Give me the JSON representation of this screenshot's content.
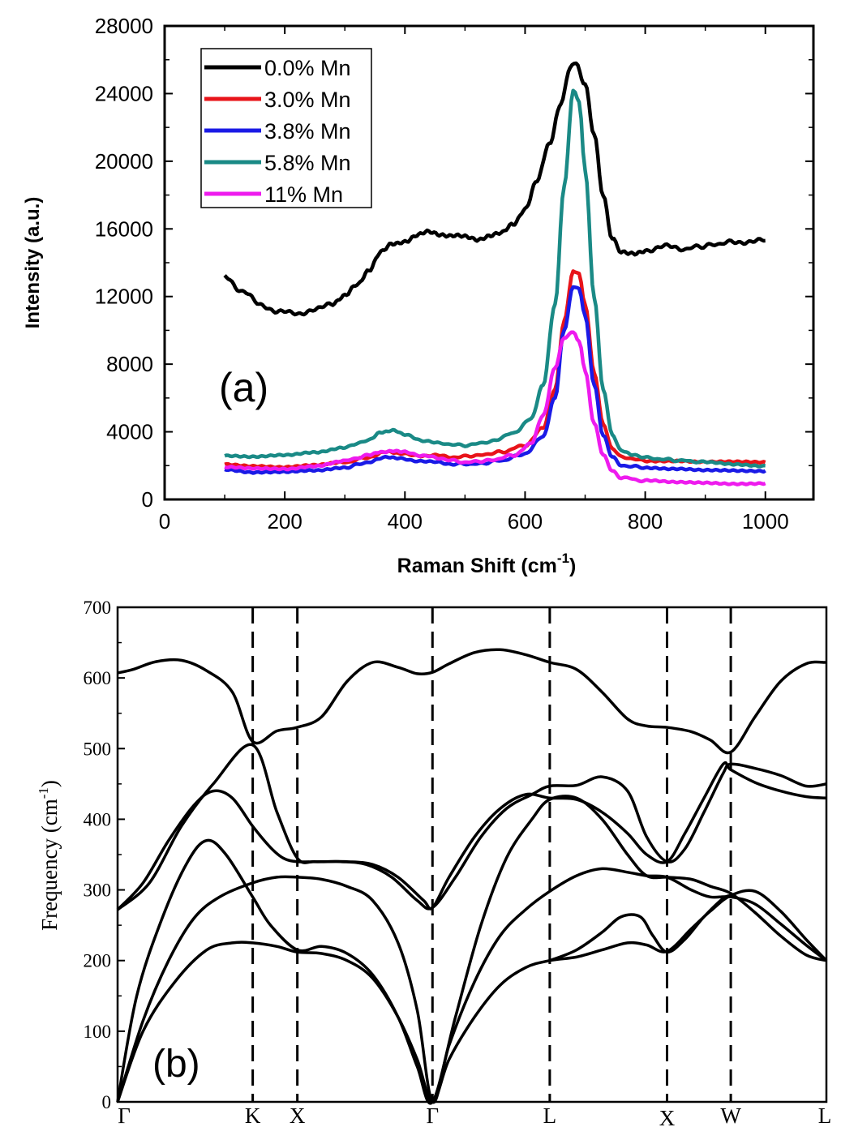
{
  "chart_data": [
    {
      "panel": "(a)",
      "type": "line",
      "xlabel": "Raman Shift (cm",
      "xlabel_sup": "-1",
      "xlabel_end": ")",
      "ylabel": "Intensity (a.u.)",
      "xlim": [
        0,
        1080
      ],
      "ylim": [
        0,
        28000
      ],
      "xticks": [
        0,
        200,
        400,
        600,
        800,
        1000
      ],
      "yticks": [
        0,
        4000,
        8000,
        12000,
        16000,
        20000,
        24000,
        28000
      ],
      "legend_position": "top-left",
      "grid": false,
      "series": [
        {
          "name": "0.0% Mn",
          "color": "#000000",
          "x": [
            100,
            130,
            160,
            190,
            220,
            250,
            280,
            300,
            320,
            340,
            360,
            380,
            400,
            420,
            440,
            460,
            480,
            500,
            520,
            540,
            560,
            580,
            600,
            620,
            640,
            660,
            675,
            685,
            700,
            715,
            730,
            745,
            760,
            780,
            800,
            830,
            860,
            900,
            940,
            1000
          ],
          "y": [
            13200,
            12300,
            11500,
            11100,
            11000,
            11200,
            11600,
            12000,
            12700,
            13600,
            14600,
            15100,
            15300,
            15600,
            15800,
            15700,
            15600,
            15500,
            15400,
            15600,
            15700,
            16300,
            17200,
            18800,
            21000,
            23500,
            25600,
            25800,
            24500,
            21500,
            18000,
            15500,
            14600,
            14600,
            14700,
            15000,
            14800,
            15000,
            15200,
            15300
          ]
        },
        {
          "name": "3.0% Mn",
          "color": "#e8141a",
          "x": [
            100,
            150,
            200,
            250,
            300,
            340,
            370,
            390,
            420,
            450,
            480,
            520,
            560,
            600,
            630,
            650,
            665,
            680,
            690,
            700,
            715,
            730,
            745,
            760,
            800,
            850,
            900,
            950,
            1000
          ],
          "y": [
            2100,
            2000,
            1900,
            2000,
            2200,
            2500,
            2800,
            2700,
            2600,
            2600,
            2500,
            2600,
            2800,
            3200,
            4200,
            6500,
            10500,
            13500,
            13300,
            11500,
            7500,
            4500,
            3000,
            2500,
            2300,
            2300,
            2200,
            2200,
            2200
          ]
        },
        {
          "name": "3.8% Mn",
          "color": "#1a1ae6",
          "x": [
            100,
            150,
            200,
            250,
            300,
            340,
            370,
            390,
            420,
            450,
            480,
            520,
            560,
            600,
            630,
            650,
            665,
            680,
            690,
            700,
            715,
            730,
            745,
            760,
            800,
            850,
            900,
            950,
            1000
          ],
          "y": [
            1800,
            1600,
            1600,
            1700,
            1900,
            2200,
            2500,
            2400,
            2300,
            2200,
            2100,
            2100,
            2300,
            2700,
            3700,
            6000,
            10000,
            12600,
            12500,
            10800,
            6800,
            3800,
            2500,
            2000,
            1900,
            1800,
            1700,
            1700,
            1700
          ]
        },
        {
          "name": "5.8% Mn",
          "color": "#1a8a86",
          "x": [
            100,
            150,
            200,
            250,
            300,
            340,
            360,
            380,
            400,
            430,
            460,
            500,
            540,
            580,
            610,
            630,
            650,
            665,
            680,
            690,
            700,
            715,
            730,
            745,
            760,
            780,
            820,
            860,
            900,
            950,
            1000
          ],
          "y": [
            2600,
            2500,
            2600,
            2800,
            3100,
            3500,
            4000,
            4100,
            3800,
            3500,
            3300,
            3200,
            3400,
            3900,
            4800,
            6800,
            11500,
            18500,
            24200,
            23500,
            19500,
            12000,
            6500,
            3800,
            2900,
            2600,
            2400,
            2300,
            2200,
            2100,
            2000
          ]
        },
        {
          "name": "11% Mn",
          "color": "#ee1bee",
          "x": [
            100,
            150,
            200,
            250,
            300,
            340,
            360,
            380,
            400,
            430,
            460,
            500,
            540,
            580,
            610,
            630,
            650,
            665,
            680,
            690,
            700,
            715,
            730,
            745,
            760,
            800,
            850,
            900,
            950,
            1000
          ],
          "y": [
            1900,
            1800,
            1800,
            2000,
            2300,
            2600,
            2800,
            2900,
            2800,
            2600,
            2400,
            2200,
            2300,
            2600,
            3300,
            5000,
            7800,
            9600,
            9900,
            9400,
            7600,
            4500,
            2600,
            1700,
            1300,
            1100,
            1000,
            1000,
            950,
            950
          ]
        }
      ]
    },
    {
      "panel": "(b)",
      "type": "line",
      "ylabel": "Frequency (cm",
      "ylabel_sup": "-1",
      "ylabel_end": ")",
      "ylim": [
        0,
        700
      ],
      "yticks": [
        0,
        100,
        200,
        300,
        400,
        500,
        600,
        700
      ],
      "kpoint_labels": [
        "Γ",
        "K",
        "X",
        "Γ",
        "L",
        "X",
        "W",
        "L"
      ],
      "kpoint_positions": [
        0,
        1.06,
        1.41,
        2.47,
        3.39,
        4.31,
        4.81,
        5.56
      ],
      "xlim": [
        0,
        5.56
      ],
      "vertical_dashed_lines_at": [
        1.06,
        1.41,
        2.47,
        3.39,
        4.31,
        4.81
      ],
      "grid": false,
      "branches": [
        {
          "x": [
            0,
            0.12,
            0.3,
            0.5,
            0.7,
            0.9,
            1.06,
            1.25,
            1.41,
            1.6,
            1.8,
            2.0,
            2.2,
            2.35,
            2.47,
            2.6,
            2.8,
            3.0,
            3.2,
            3.39,
            3.6,
            3.8,
            4.0,
            4.15,
            4.31,
            4.5,
            4.65,
            4.81,
            5.0,
            5.2,
            5.4,
            5.56
          ],
          "y": [
            607,
            612,
            623,
            625,
            610,
            580,
            510,
            525,
            530,
            545,
            595,
            622,
            615,
            606,
            608,
            620,
            636,
            640,
            633,
            622,
            612,
            580,
            542,
            532,
            530,
            524,
            512,
            495,
            545,
            595,
            620,
            622
          ]
        },
        {
          "x": [
            0,
            0.25,
            0.5,
            0.75,
            1.06,
            1.25,
            1.41,
            1.55,
            1.75,
            1.95,
            2.15,
            2.35,
            2.47,
            2.65,
            2.85,
            3.05,
            3.25,
            3.39,
            3.6,
            3.8,
            4.0,
            4.15,
            4.31,
            4.45,
            4.6,
            4.75,
            4.81,
            5.0,
            5.2,
            5.4,
            5.56
          ],
          "y": [
            272,
            310,
            390,
            450,
            505,
            410,
            345,
            340,
            340,
            336,
            318,
            285,
            275,
            318,
            375,
            415,
            435,
            447,
            448,
            460,
            440,
            375,
            340,
            358,
            410,
            465,
            478,
            472,
            462,
            447,
            450
          ]
        },
        {
          "x": [
            0,
            0.2,
            0.4,
            0.6,
            0.75,
            0.9,
            1.06,
            1.2,
            1.3,
            1.41,
            1.6,
            1.8,
            2.0,
            2.2,
            2.4,
            2.47,
            2.6,
            2.8,
            3.0,
            3.2,
            3.39,
            3.6,
            3.8,
            4.0,
            4.15,
            4.31,
            4.45,
            4.6,
            4.75,
            4.81,
            5.0,
            5.2,
            5.4,
            5.56
          ],
          "y": [
            272,
            310,
            370,
            420,
            440,
            430,
            390,
            360,
            345,
            340,
            340,
            340,
            336,
            318,
            285,
            275,
            318,
            375,
            415,
            435,
            430,
            428,
            410,
            380,
            350,
            340,
            380,
            430,
            478,
            470,
            452,
            440,
            432,
            430
          ]
        },
        {
          "x": [
            0,
            0.15,
            0.35,
            0.55,
            0.7,
            0.85,
            1.06,
            1.2,
            1.41,
            1.6,
            1.8,
            2.0,
            2.2,
            2.35,
            2.47,
            2.65,
            2.85,
            3.05,
            3.25,
            3.39,
            3.6,
            3.8,
            4.0,
            4.15,
            4.31,
            4.5,
            4.65,
            4.81,
            5.0,
            5.2,
            5.4,
            5.56
          ],
          "y": [
            0,
            150,
            260,
            340,
            370,
            350,
            290,
            250,
            215,
            220,
            210,
            180,
            120,
            50,
            0,
            120,
            250,
            345,
            400,
            428,
            430,
            400,
            350,
            320,
            318,
            315,
            305,
            295,
            268,
            235,
            208,
            200
          ]
        },
        {
          "x": [
            0,
            0.2,
            0.4,
            0.6,
            0.8,
            1.06,
            1.25,
            1.41,
            1.6,
            1.8,
            2.0,
            2.2,
            2.35,
            2.47,
            2.6,
            2.8,
            3.0,
            3.2,
            3.39,
            3.6,
            3.8,
            4.0,
            4.15,
            4.31,
            4.5,
            4.65,
            4.81,
            5.0,
            5.2,
            5.4,
            5.56
          ],
          "y": [
            0,
            115,
            200,
            260,
            290,
            310,
            318,
            318,
            315,
            305,
            285,
            225,
            130,
            0,
            80,
            170,
            235,
            272,
            298,
            320,
            330,
            325,
            320,
            318,
            300,
            290,
            290,
            280,
            252,
            222,
            200
          ]
        },
        {
          "x": [
            0,
            0.2,
            0.45,
            0.7,
            0.9,
            1.06,
            1.25,
            1.41,
            1.6,
            1.8,
            2.0,
            2.2,
            2.35,
            2.47,
            2.6,
            2.8,
            3.0,
            3.2,
            3.39,
            3.6,
            3.8,
            4.0,
            4.15,
            4.31,
            4.5,
            4.65,
            4.81,
            5.0,
            5.2,
            5.4,
            5.56
          ],
          "y": [
            0,
            100,
            170,
            215,
            225,
            225,
            220,
            212,
            210,
            200,
            175,
            120,
            60,
            0,
            60,
            120,
            165,
            190,
            200,
            205,
            215,
            225,
            222,
            213,
            245,
            270,
            292,
            298,
            270,
            230,
            200
          ]
        },
        {
          "x": [
            3.39,
            3.6,
            3.8,
            3.95,
            4.1,
            4.2,
            4.31,
            4.45,
            4.6,
            4.75,
            4.81
          ],
          "y": [
            200,
            215,
            240,
            262,
            262,
            235,
            212,
            230,
            262,
            288,
            292
          ]
        }
      ]
    }
  ],
  "panel_a_label": "(a)",
  "panel_b_label": "(b)",
  "colors": {
    "axis": "#000000",
    "background": "#ffffff"
  }
}
